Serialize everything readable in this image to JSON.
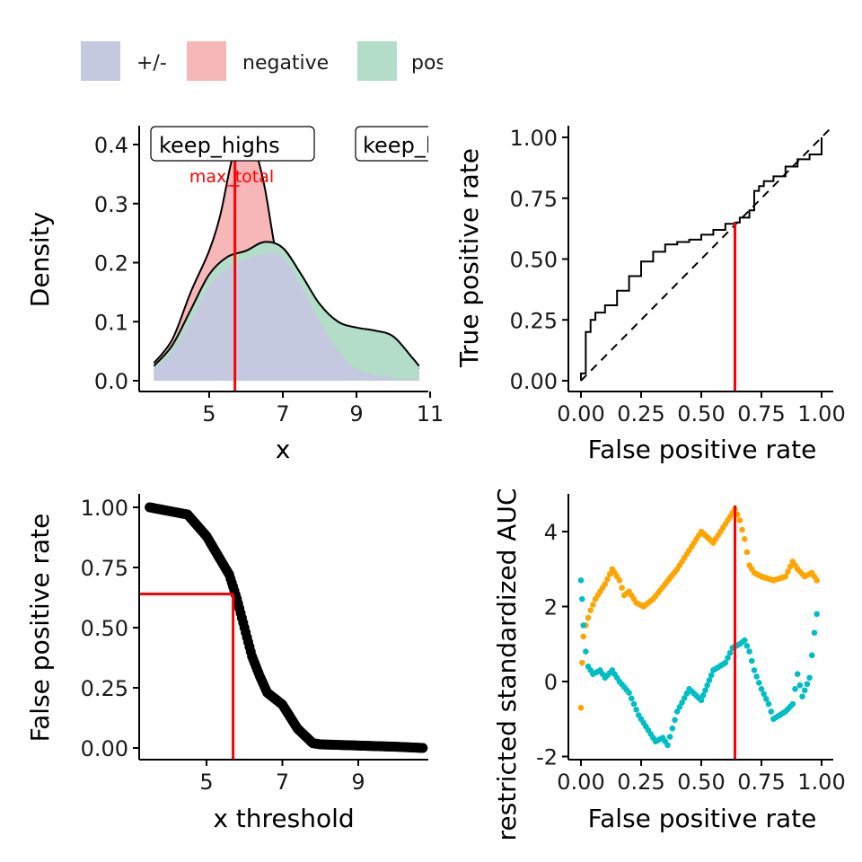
{
  "legend": {
    "items": [
      {
        "label": "+/-",
        "color": "#c5c9e0"
      },
      {
        "label": "negative",
        "color": "#f7b6b7"
      },
      {
        "label": "positive",
        "color": "#b3ddc8"
      }
    ]
  },
  "colors": {
    "fill_pm": "#c5c9e0",
    "fill_neg": "#f7b6b7",
    "fill_pos": "#b3ddc8",
    "threshold": "#ff0000",
    "orange": "#ffa500",
    "cyan": "#00bfc4"
  },
  "chart_data": [
    {
      "id": "density",
      "type": "area",
      "xlabel": "x",
      "ylabel": "Density",
      "xlim": [
        3.1,
        10.95
      ],
      "ylim": [
        0,
        0.43
      ],
      "xticks": [
        "5",
        "7",
        "9",
        "11"
      ],
      "yticks": [
        "0.0",
        "0.1",
        "0.2",
        "0.3",
        "0.4"
      ],
      "threshold": 5.7,
      "boxes": [
        "keep_highs",
        "keep_lows"
      ],
      "annotation": "max_total",
      "series": [
        {
          "name": "negative",
          "x": [
            3.5,
            4,
            4.5,
            5,
            5.3,
            5.6,
            5.8,
            6,
            6.2,
            6.5,
            6.8,
            7.2,
            7.6,
            8,
            8.5,
            9,
            9.5,
            10,
            10.5,
            10.7
          ],
          "values": [
            0.03,
            0.07,
            0.15,
            0.22,
            0.28,
            0.37,
            0.4,
            0.41,
            0.4,
            0.33,
            0.22,
            0.1,
            0.05,
            0.03,
            0.02,
            0.02,
            0.03,
            0.04,
            0.03,
            0.02
          ]
        },
        {
          "name": "positive",
          "x": [
            3.5,
            4,
            4.5,
            5,
            5.5,
            6,
            6.5,
            7,
            7.5,
            8,
            8.5,
            9,
            9.5,
            10,
            10.5,
            10.7
          ],
          "values": [
            0.025,
            0.06,
            0.12,
            0.18,
            0.21,
            0.22,
            0.235,
            0.225,
            0.18,
            0.13,
            0.1,
            0.09,
            0.085,
            0.075,
            0.04,
            0.025
          ]
        },
        {
          "name": "+/-",
          "x": [
            3.5,
            4,
            4.5,
            5,
            5.5,
            6,
            6.5,
            7,
            7.5,
            8,
            8.5,
            9,
            9.5,
            10,
            10.5,
            10.7
          ],
          "values": [
            0.02,
            0.05,
            0.1,
            0.16,
            0.19,
            0.205,
            0.215,
            0.21,
            0.16,
            0.1,
            0.05,
            0.02,
            0.01,
            0.005,
            0.002,
            0.001
          ]
        }
      ]
    },
    {
      "id": "roc",
      "type": "line",
      "xlabel": "False positive rate",
      "ylabel": "True positive rate",
      "xlim": [
        -0.04,
        1.04
      ],
      "ylim": [
        -0.04,
        1.04
      ],
      "xticks": [
        "0.00",
        "0.25",
        "0.50",
        "0.75",
        "1.00"
      ],
      "yticks": [
        "0.00",
        "0.25",
        "0.50",
        "0.75",
        "1.00"
      ],
      "threshold_fpr": 0.64,
      "threshold_tpr": 0.65,
      "x": [
        0,
        0,
        0.02,
        0.02,
        0.04,
        0.04,
        0.06,
        0.1,
        0.15,
        0.2,
        0.25,
        0.3,
        0.35,
        0.4,
        0.45,
        0.5,
        0.55,
        0.6,
        0.64,
        0.66,
        0.7,
        0.72,
        0.74,
        0.76,
        0.8,
        0.85,
        0.9,
        0.95,
        1.0
      ],
      "values": [
        0,
        0.03,
        0.03,
        0.2,
        0.2,
        0.25,
        0.28,
        0.31,
        0.37,
        0.43,
        0.49,
        0.53,
        0.56,
        0.57,
        0.58,
        0.6,
        0.62,
        0.645,
        0.65,
        0.67,
        0.7,
        0.78,
        0.8,
        0.82,
        0.84,
        0.88,
        0.91,
        0.93,
        1.0
      ]
    },
    {
      "id": "fpr_threshold",
      "type": "scatter",
      "xlabel": "x threshold",
      "ylabel": "False positive rate",
      "xlim": [
        3.1,
        10.8
      ],
      "ylim": [
        -0.04,
        1.04
      ],
      "xticks": [
        "5",
        "7",
        "9"
      ],
      "yticks": [
        "0.00",
        "0.25",
        "0.50",
        "0.75",
        "1.00"
      ],
      "threshold_x": 5.7,
      "threshold_fpr": 0.64,
      "x": [
        3.5,
        4,
        4.5,
        5,
        5.3,
        5.6,
        5.8,
        6,
        6.2,
        6.4,
        6.6,
        7,
        7.4,
        7.8,
        8,
        9,
        10,
        10.7
      ],
      "values": [
        1.0,
        0.985,
        0.97,
        0.88,
        0.8,
        0.72,
        0.62,
        0.5,
        0.38,
        0.3,
        0.23,
        0.18,
        0.08,
        0.02,
        0.015,
        0.01,
        0.005,
        0.0
      ]
    },
    {
      "id": "rsauc",
      "type": "scatter",
      "xlabel": "False positive rate",
      "ylabel": "restricted standardized AUC",
      "xlim": [
        -0.04,
        1.04
      ],
      "ylim": [
        -2.1,
        4.9
      ],
      "xticks": [
        "0.00",
        "0.25",
        "0.50",
        "0.75",
        "1.00"
      ],
      "yticks": [
        "-2",
        "0",
        "2",
        "4"
      ],
      "threshold_fpr": 0.64,
      "series": [
        {
          "color": "orange",
          "x": [
            0,
            0.005,
            0.01,
            0.02,
            0.04,
            0.06,
            0.1,
            0.13,
            0.16,
            0.18,
            0.2,
            0.23,
            0.26,
            0.3,
            0.35,
            0.4,
            0.45,
            0.5,
            0.55,
            0.6,
            0.64,
            0.66,
            0.68,
            0.7,
            0.72,
            0.75,
            0.8,
            0.85,
            0.88,
            0.9,
            0.93,
            0.96,
            0.98
          ],
          "values": [
            -0.7,
            0.5,
            1.2,
            1.5,
            1.9,
            2.2,
            2.6,
            3.0,
            2.7,
            2.3,
            2.4,
            2.1,
            2.0,
            2.2,
            2.6,
            3.0,
            3.5,
            4.0,
            3.7,
            4.2,
            4.6,
            4.3,
            3.8,
            3.1,
            2.9,
            2.8,
            2.7,
            2.8,
            3.2,
            3.0,
            2.8,
            2.9,
            2.7
          ]
        },
        {
          "color": "cyan",
          "x": [
            0,
            0.005,
            0.01,
            0.02,
            0.03,
            0.05,
            0.08,
            0.1,
            0.13,
            0.16,
            0.2,
            0.24,
            0.28,
            0.31,
            0.34,
            0.36,
            0.4,
            0.45,
            0.5,
            0.55,
            0.6,
            0.63,
            0.66,
            0.68,
            0.7,
            0.72,
            0.75,
            0.78,
            0.8,
            0.85,
            0.88,
            0.9,
            0.92,
            0.95,
            0.97,
            0.98
          ],
          "values": [
            2.7,
            2.2,
            1.5,
            0.8,
            0.4,
            0.2,
            0.3,
            0.1,
            0.3,
            0.0,
            -0.3,
            -0.9,
            -1.3,
            -1.6,
            -1.5,
            -1.7,
            -0.8,
            -0.2,
            -0.5,
            0.3,
            0.5,
            0.9,
            1.0,
            1.1,
            0.8,
            0.3,
            -0.2,
            -0.6,
            -1.0,
            -0.8,
            -0.6,
            0.2,
            -0.4,
            0.1,
            1.3,
            1.8
          ]
        }
      ]
    }
  ]
}
